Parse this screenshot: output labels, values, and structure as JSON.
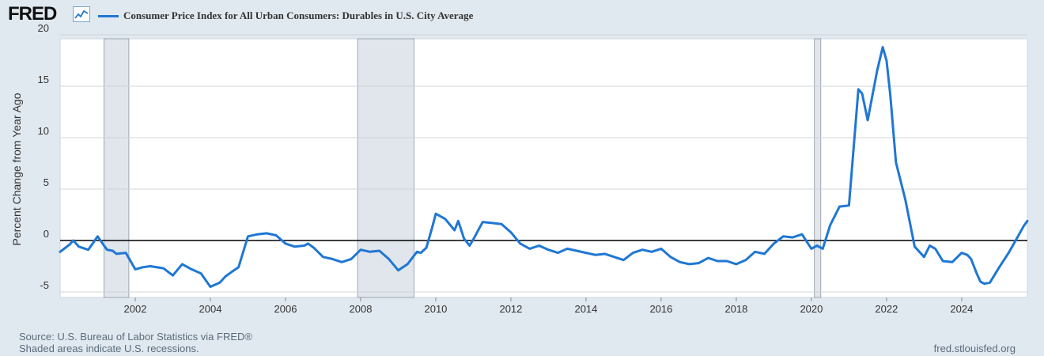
{
  "brand": {
    "logo_text": "FRED",
    "logo_icon": "line-chart-icon"
  },
  "colors": {
    "series": "#1f77d4",
    "recession": "#e1e5ec",
    "background": "#e1e9f0",
    "plot": "#ffffff"
  },
  "footer": {
    "source": "Source: U.S. Bureau of Labor Statistics via FRED®",
    "shaded": "Shaded areas indicate U.S. recessions.",
    "site": "fred.stlouisfed.org"
  },
  "chart_data": {
    "type": "line",
    "title": "Consumer Price Index for All Urban Consumers: Durables in U.S. City Average",
    "xlabel": "",
    "ylabel": "Percent Change from Year Ago",
    "xlim": [
      2000.0,
      2025.75
    ],
    "ylim": [
      -5,
      20
    ],
    "y_ticks": [
      -5,
      0,
      5,
      10,
      15,
      20
    ],
    "x_ticks": [
      2002,
      2004,
      2006,
      2008,
      2010,
      2012,
      2014,
      2016,
      2018,
      2020,
      2022,
      2024
    ],
    "grid": true,
    "zero_line": 0,
    "recessions": [
      [
        2001.17,
        2001.83
      ],
      [
        2007.92,
        2009.42
      ],
      [
        2020.08,
        2020.25
      ]
    ],
    "series": [
      {
        "name": "Consumer Price Index for All Urban Consumers: Durables in U.S. City Average",
        "x": [
          2000.0,
          2000.25,
          2000.35,
          2000.5,
          2000.75,
          2001.0,
          2001.15,
          2001.25,
          2001.4,
          2001.5,
          2001.75,
          2002.0,
          2002.2,
          2002.4,
          2002.75,
          2003.0,
          2003.25,
          2003.5,
          2003.75,
          2004.0,
          2004.25,
          2004.4,
          2004.55,
          2004.75,
          2005.0,
          2005.25,
          2005.5,
          2005.75,
          2006.0,
          2006.25,
          2006.5,
          2006.6,
          2006.75,
          2007.0,
          2007.25,
          2007.5,
          2007.75,
          2008.0,
          2008.25,
          2008.5,
          2008.75,
          2009.0,
          2009.25,
          2009.5,
          2009.6,
          2009.75,
          2009.9,
          2010.0,
          2010.25,
          2010.5,
          2010.6,
          2010.75,
          2010.9,
          2011.0,
          2011.25,
          2011.5,
          2011.75,
          2012.0,
          2012.25,
          2012.5,
          2012.75,
          2013.0,
          2013.25,
          2013.5,
          2013.75,
          2014.0,
          2014.25,
          2014.5,
          2014.75,
          2015.0,
          2015.25,
          2015.5,
          2015.75,
          2016.0,
          2016.25,
          2016.5,
          2016.75,
          2017.0,
          2017.25,
          2017.5,
          2017.75,
          2018.0,
          2018.25,
          2018.5,
          2018.75,
          2019.0,
          2019.25,
          2019.5,
          2019.75,
          2020.0,
          2020.15,
          2020.3,
          2020.5,
          2020.75,
          2021.0,
          2021.25,
          2021.35,
          2021.5,
          2021.75,
          2021.9,
          2022.0,
          2022.1,
          2022.25,
          2022.5,
          2022.75,
          2023.0,
          2023.15,
          2023.3,
          2023.5,
          2023.75,
          2024.0,
          2024.15,
          2024.25,
          2024.4,
          2024.5,
          2024.6,
          2024.75,
          2025.0,
          2025.25,
          2025.5,
          2025.65,
          2025.75
        ],
        "values": [
          -1.1,
          -0.4,
          0.0,
          -0.6,
          -0.9,
          0.4,
          -0.4,
          -0.9,
          -1.0,
          -1.3,
          -1.2,
          -2.8,
          -2.6,
          -2.5,
          -2.7,
          -3.4,
          -2.3,
          -2.8,
          -3.2,
          -4.5,
          -4.1,
          -3.5,
          -3.1,
          -2.6,
          0.4,
          0.6,
          0.7,
          0.5,
          -0.3,
          -0.6,
          -0.5,
          -0.3,
          -0.7,
          -1.6,
          -1.8,
          -2.1,
          -1.8,
          -0.9,
          -1.1,
          -1.0,
          -1.8,
          -2.9,
          -2.3,
          -1.1,
          -1.2,
          -0.7,
          1.2,
          2.6,
          2.1,
          1.0,
          1.9,
          0.2,
          -0.5,
          0.1,
          1.8,
          1.7,
          1.6,
          0.8,
          -0.3,
          -0.8,
          -0.5,
          -0.9,
          -1.2,
          -0.8,
          -1.0,
          -1.2,
          -1.4,
          -1.3,
          -1.6,
          -1.9,
          -1.2,
          -0.9,
          -1.1,
          -0.8,
          -1.6,
          -2.1,
          -2.3,
          -2.2,
          -1.7,
          -2.0,
          -2.0,
          -2.3,
          -1.9,
          -1.1,
          -1.3,
          -0.3,
          0.4,
          0.3,
          0.6,
          -0.8,
          -0.5,
          -0.8,
          1.5,
          3.3,
          3.4,
          14.7,
          14.3,
          11.7,
          16.5,
          18.8,
          17.5,
          14.2,
          7.6,
          4.0,
          -0.6,
          -1.6,
          -0.5,
          -0.8,
          -2.0,
          -2.1,
          -1.2,
          -1.4,
          -1.8,
          -3.2,
          -4.0,
          -4.2,
          -4.1,
          -2.6,
          -1.2,
          0.4,
          1.4,
          1.9
        ]
      }
    ]
  }
}
